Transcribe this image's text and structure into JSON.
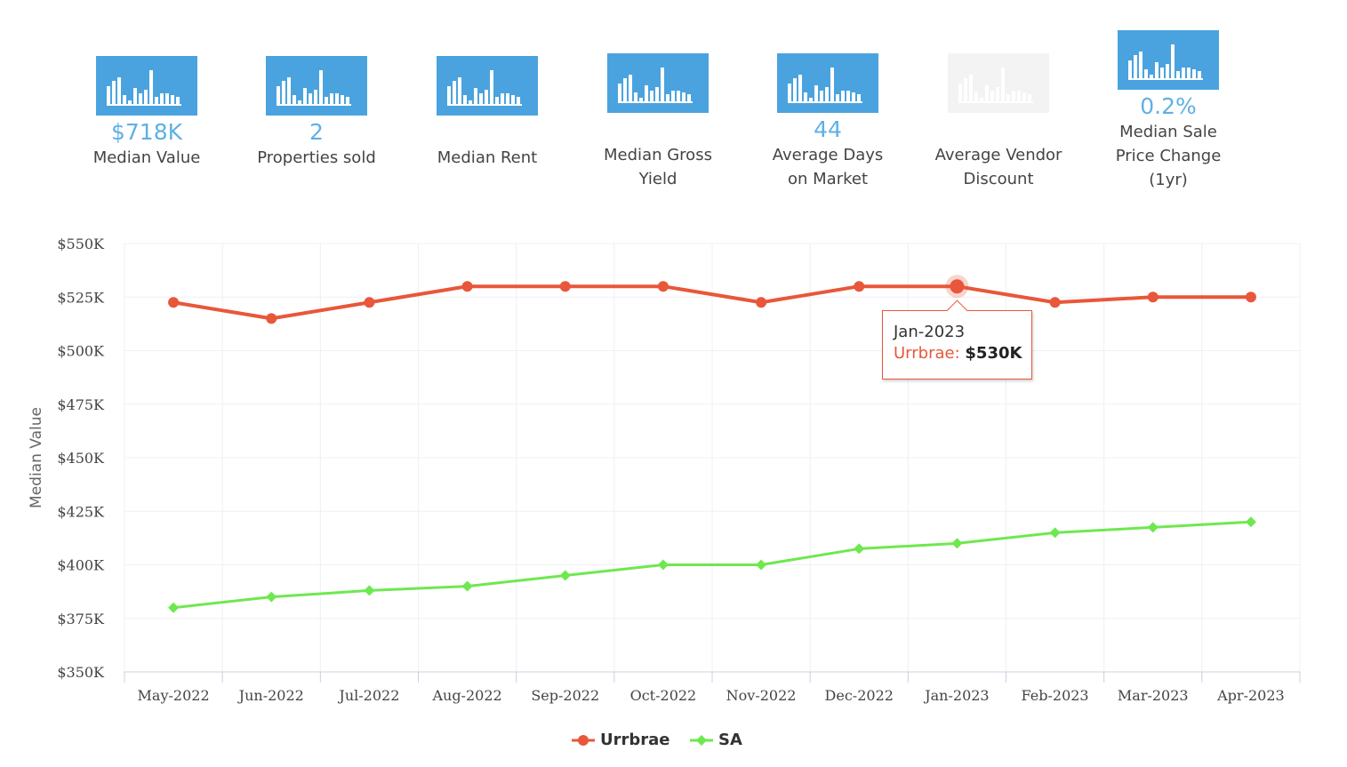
{
  "metrics": [
    {
      "value": "$718K",
      "label": "Median Value",
      "disabled": false
    },
    {
      "value": "2",
      "label": "Properties sold",
      "disabled": false
    },
    {
      "value": "",
      "label": "Median Rent",
      "disabled": false
    },
    {
      "value": "",
      "label": "Median Gross Yield",
      "disabled": false
    },
    {
      "value": "44",
      "label": "Average Days on Market",
      "disabled": false
    },
    {
      "value": "",
      "label": "Average Vendor Discount",
      "disabled": true
    },
    {
      "value": "0.2%",
      "label": "Median Sale Price Change (1yr)",
      "disabled": false
    }
  ],
  "colors": {
    "tile": "#4aa3df",
    "urrbrae": "#e8573a",
    "sa": "#6ee84f",
    "grid": "#eef0f5",
    "axis_text": "#444444"
  },
  "tooltip": {
    "month": "Jan-2023",
    "series": "Urrbrae",
    "value": "$530K"
  },
  "chart_data": {
    "type": "line",
    "title": "",
    "xlabel": "",
    "ylabel": "Median Value",
    "categories": [
      "May-2022",
      "Jun-2022",
      "Jul-2022",
      "Aug-2022",
      "Sep-2022",
      "Oct-2022",
      "Nov-2022",
      "Dec-2022",
      "Jan-2023",
      "Feb-2023",
      "Mar-2023",
      "Apr-2023"
    ],
    "ylim": [
      350000,
      550000
    ],
    "ytick_values": [
      350000,
      375000,
      400000,
      425000,
      450000,
      475000,
      500000,
      525000,
      550000
    ],
    "yticks": [
      "$350K",
      "$375K",
      "$400K",
      "$425K",
      "$450K",
      "$475K",
      "$500K",
      "$525K",
      "$550K"
    ],
    "grid": true,
    "legend_position": "bottom-center",
    "highlight_index": 8,
    "series": [
      {
        "name": "Urrbrae",
        "color": "#e8573a",
        "marker": "circle",
        "values": [
          522500,
          515000,
          522500,
          530000,
          530000,
          530000,
          522500,
          530000,
          530000,
          522500,
          525000,
          525000
        ]
      },
      {
        "name": "SA",
        "color": "#6ee84f",
        "marker": "diamond",
        "values": [
          380000,
          385000,
          388000,
          390000,
          395000,
          400000,
          400000,
          407500,
          410000,
          415000,
          417500,
          420000
        ]
      }
    ]
  }
}
